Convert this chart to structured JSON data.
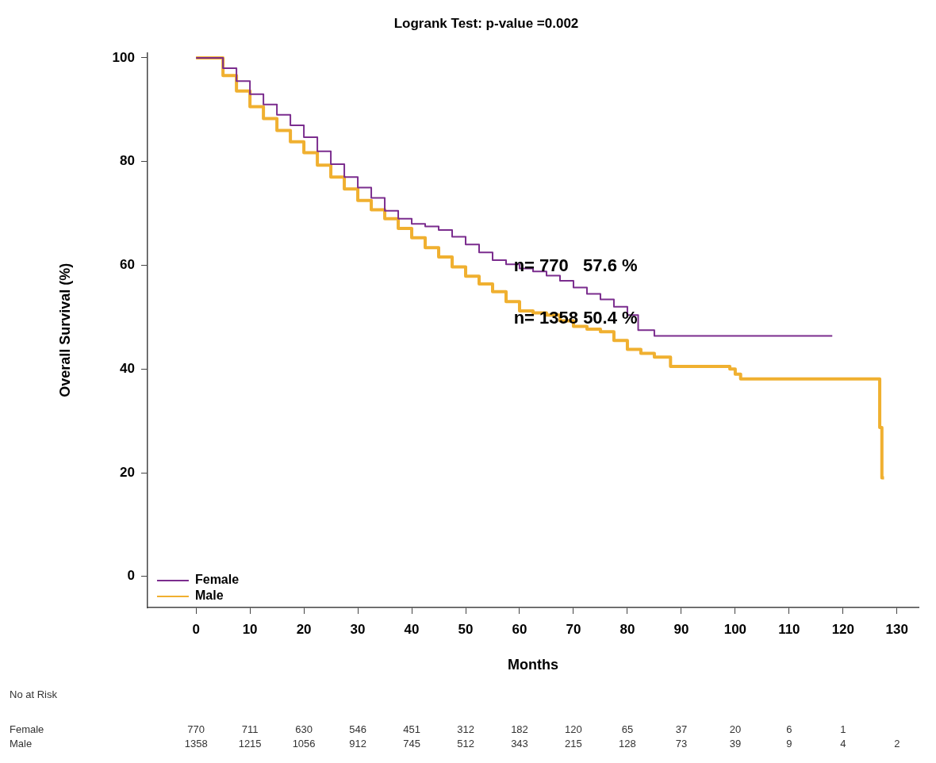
{
  "chart_data": {
    "type": "step",
    "title": "Logrank Test: p-value =0.002",
    "xlabel": "Months",
    "ylabel": "Overall Survival (%)",
    "xlim": [
      -9,
      134
    ],
    "xticks": [
      0,
      10,
      20,
      30,
      40,
      50,
      60,
      70,
      80,
      90,
      100,
      110,
      120,
      130
    ],
    "ylim": [
      -6,
      101
    ],
    "yticks": [
      0,
      20,
      40,
      60,
      80,
      100
    ],
    "grid": false,
    "legend": "bottom left",
    "marker": "none",
    "line_style": "solid",
    "series": [
      {
        "name": "Female",
        "color": "#7b2d8e",
        "x": [
          0,
          2.5,
          5,
          7.5,
          10,
          12.5,
          15,
          17.5,
          20,
          22.5,
          25,
          27.5,
          30,
          32.5,
          35,
          37.5,
          40,
          42.5,
          45,
          47.5,
          50,
          52.5,
          55,
          57.5,
          60,
          62.5,
          65,
          67.5,
          70,
          72.5,
          75,
          77.5,
          80,
          82,
          85,
          118
        ],
        "values": [
          100,
          100,
          98,
          95.5,
          93,
          91,
          89,
          87,
          84.7,
          82,
          79.5,
          77,
          75,
          73,
          70.5,
          69,
          68,
          67.5,
          66.8,
          65.5,
          64,
          62.5,
          61,
          60.2,
          59.4,
          58.8,
          58,
          57,
          55.7,
          54.5,
          53.4,
          52,
          50.4,
          47.5,
          46.4,
          46.4
        ]
      },
      {
        "name": "Male",
        "color": "#f0b030",
        "x": [
          0,
          2,
          5,
          7.5,
          10,
          12.5,
          15,
          17.5,
          20,
          22.5,
          25,
          27.5,
          30,
          32.5,
          35,
          37.5,
          40,
          42.5,
          45,
          47.5,
          50,
          52.5,
          55,
          57.5,
          60,
          62.5,
          65,
          67.5,
          70,
          72.5,
          75,
          77.5,
          80,
          82.5,
          85,
          88,
          99,
          100,
          101,
          126.8,
          127.2,
          127.6
        ],
        "values": [
          100,
          100,
          96.6,
          93.6,
          90.6,
          88.3,
          86,
          83.8,
          81.7,
          79.3,
          77,
          74.7,
          72.5,
          70.7,
          69,
          67.1,
          65.3,
          63.4,
          61.6,
          59.7,
          57.9,
          56.4,
          54.9,
          53,
          51.2,
          50.8,
          50.4,
          49.3,
          48.2,
          47.7,
          47.2,
          45.5,
          43.8,
          43,
          42.3,
          40.5,
          40,
          39,
          38.1,
          28.7,
          19,
          19
        ]
      }
    ],
    "annotations": [
      "n= 770   57.6 %",
      "n= 1358 50.4 %",
      "No at Risk",
      "Female",
      "770 711 630 546 451 312 182 120 65 37 20 6 1",
      "Male",
      "1358 1215 1056 912 745 512 343 215 128 73 39 9 4 2"
    ]
  }
}
